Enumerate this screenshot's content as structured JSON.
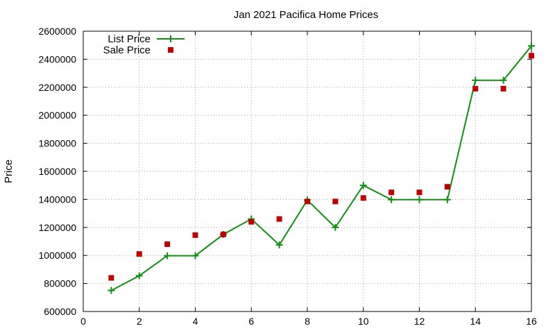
{
  "chart_data": {
    "type": "line",
    "title": "Jan 2021 Pacifica Home Prices",
    "xlabel": "",
    "ylabel": "Price",
    "xlim": [
      0,
      16
    ],
    "ylim": [
      600000,
      2600000
    ],
    "x_ticks": [
      0,
      2,
      4,
      6,
      8,
      10,
      12,
      14,
      16
    ],
    "y_ticks": [
      600000,
      800000,
      1000000,
      1200000,
      1400000,
      1600000,
      1800000,
      2000000,
      2200000,
      2400000,
      2600000
    ],
    "x_tick_labels": [
      "0",
      "2",
      "4",
      "6",
      "8",
      "10",
      "12",
      "14",
      "16"
    ],
    "y_tick_labels": [
      "600000",
      "800000",
      "1000000",
      "1200000",
      "1400000",
      "1600000",
      "1800000",
      "2000000",
      "2200000",
      "2400000",
      "2600000"
    ],
    "grid": true,
    "legend_position": "top-left",
    "x": [
      1,
      2,
      3,
      4,
      5,
      6,
      7,
      8,
      9,
      10,
      11,
      12,
      13,
      14,
      15,
      16
    ],
    "series": [
      {
        "name": "List Price",
        "style": "linespoints",
        "marker": "plus",
        "color": "#109010",
        "values": [
          750000,
          855000,
          998000,
          998000,
          1150000,
          1260000,
          1075000,
          1395000,
          1200000,
          1500000,
          1398000,
          1398000,
          1398000,
          2250000,
          2250000,
          2495000
        ]
      },
      {
        "name": "Sale Price",
        "style": "points",
        "marker": "square",
        "color": "#c00000",
        "values": [
          840000,
          1010000,
          1080000,
          1145000,
          1150000,
          1240000,
          1260000,
          1385000,
          1385000,
          1410000,
          1450000,
          1450000,
          1490000,
          2190000,
          2190000,
          2425000
        ]
      }
    ]
  }
}
